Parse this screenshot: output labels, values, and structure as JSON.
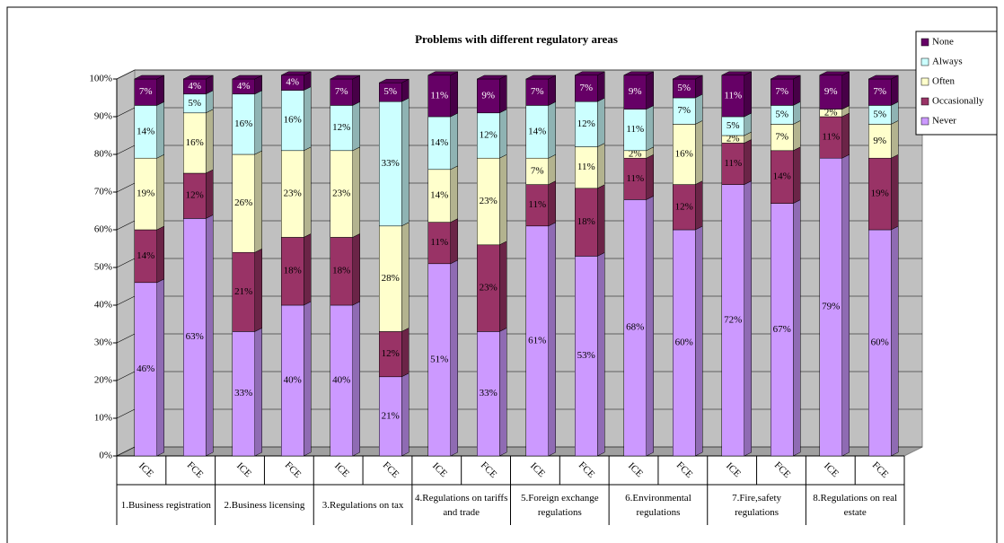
{
  "chart_data": {
    "type": "bar",
    "stacked": true,
    "title": "Problems with different regulatory areas",
    "categories": [
      "ICE",
      "FCE",
      "ICE",
      "FCE",
      "ICE",
      "FCE",
      "ICE",
      "FCE",
      "ICE",
      "FCE",
      "ICE",
      "FCE",
      "ICE",
      "FCE",
      "ICE",
      "FCE"
    ],
    "group_labels": [
      "1.Business registration",
      "2.Business licensing",
      "3.Regulations on tax",
      "4.Regulations on tariffs and trade",
      "5.Foreign exchange regulations",
      "6.Environmental regulations",
      "7.Fire,safety regulations",
      "8.Regulations on real estate"
    ],
    "series": [
      {
        "name": "Never",
        "color": "#cc99ff",
        "values": [
          46,
          63,
          33,
          40,
          40,
          21,
          51,
          33,
          61,
          53,
          68,
          60,
          72,
          67,
          79,
          60
        ],
        "value_labels": [
          "46%",
          "63%",
          "33%",
          "40%",
          "40%",
          "21%",
          "51%",
          "33%",
          "61%",
          "53%",
          "68%",
          "60%",
          "72%",
          "67%",
          "79%",
          "60%"
        ]
      },
      {
        "name": "Occasionally",
        "color": "#993366",
        "values": [
          14,
          12,
          21,
          18,
          18,
          12,
          11,
          23,
          11,
          18,
          11,
          12,
          11,
          14,
          11,
          19
        ],
        "value_labels": [
          "14%",
          "12%",
          "21%",
          "18%",
          "18%",
          "12%",
          "11%",
          "23%",
          "11%",
          "18%",
          "11%",
          "12%",
          "11%",
          "14%",
          "11%",
          "19%"
        ]
      },
      {
        "name": "Often",
        "color": "#ffffcc",
        "values": [
          19,
          16,
          26,
          23,
          23,
          28,
          14,
          23,
          7,
          11,
          2,
          16,
          2,
          7,
          2,
          9
        ],
        "value_labels": [
          "19%",
          "16%",
          "26%",
          "23%",
          "23%",
          "28%",
          "14%",
          "23%",
          "7%",
          "11%",
          "2%",
          "16%",
          "2%",
          "7%",
          "2%",
          "9%"
        ]
      },
      {
        "name": "Always",
        "color": "#ccffff",
        "values": [
          14,
          5,
          16,
          16,
          12,
          33,
          14,
          12,
          14,
          12,
          11,
          7,
          5,
          5,
          0,
          5
        ],
        "value_labels": [
          "14%",
          "5%",
          "16%",
          "16%",
          "12%",
          "33%",
          "14%",
          "12%",
          "14%",
          "12%",
          "11%",
          "7%",
          "5%",
          "5%",
          null,
          "5%"
        ]
      },
      {
        "name": "None",
        "color": "#660066",
        "values": [
          7,
          4,
          4,
          4,
          7,
          5,
          11,
          9,
          7,
          7,
          9,
          5,
          11,
          7,
          9,
          7
        ],
        "value_labels": [
          "7%",
          "4%",
          "4%",
          "4%",
          "7%",
          "5%",
          "11%",
          "9%",
          "7%",
          "7%",
          "9%",
          "5%",
          "11%",
          "7%",
          "9%",
          "7%"
        ]
      }
    ],
    "ylim": [
      0,
      100
    ],
    "yticks": [
      {
        "value": 0,
        "label": "0%"
      },
      {
        "value": 10,
        "label": "10%"
      },
      {
        "value": 20,
        "label": "20%"
      },
      {
        "value": 30,
        "label": "30%"
      },
      {
        "value": 40,
        "label": "40%"
      },
      {
        "value": 50,
        "label": "50%"
      },
      {
        "value": 60,
        "label": "60%"
      },
      {
        "value": 70,
        "label": "70%"
      },
      {
        "value": 80,
        "label": "80%"
      },
      {
        "value": 90,
        "label": "90%"
      },
      {
        "value": 100,
        "label": "100%"
      }
    ],
    "grid": true,
    "legend": "right"
  }
}
